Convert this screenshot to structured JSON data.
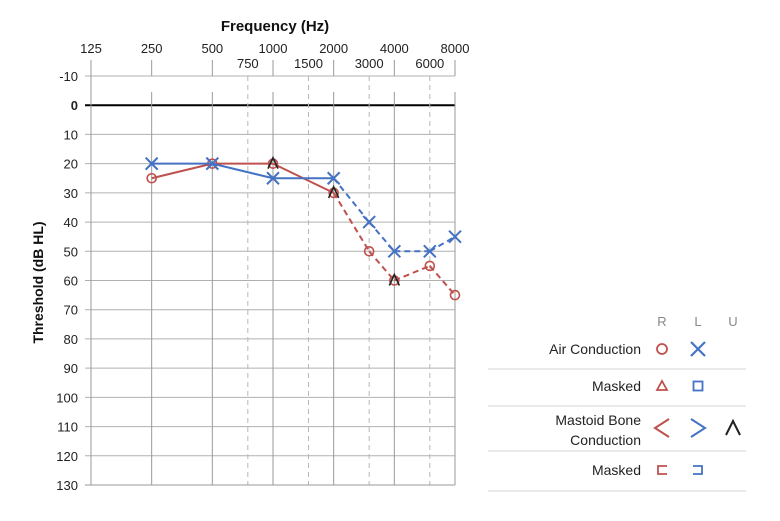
{
  "chart_data": {
    "type": "line",
    "title": "Frequency (Hz)",
    "xlabel": "Frequency (Hz)",
    "ylabel": "Threshold (dB HL)",
    "x_scale": "log2",
    "x_major_ticks": [
      125,
      250,
      500,
      1000,
      2000,
      4000,
      8000
    ],
    "x_major_labels": [
      "125",
      "250",
      "500",
      "1000",
      "2000",
      "4000",
      "8000"
    ],
    "x_minor_ticks": [
      750,
      1500,
      3000,
      6000
    ],
    "x_minor_labels": [
      "750",
      "1500",
      "3000",
      "6000"
    ],
    "ylim": [
      -10,
      130
    ],
    "y_inverted": true,
    "y_ticks": [
      -10,
      0,
      10,
      20,
      30,
      40,
      50,
      60,
      70,
      80,
      90,
      100,
      110,
      120,
      130
    ],
    "y_tick_labels": [
      "-10",
      "0",
      "10",
      "20",
      "30",
      "40",
      "50",
      "60",
      "70",
      "80",
      "90",
      "100",
      "110",
      "120",
      "130"
    ],
    "grid": true,
    "reference_line": 0,
    "series": [
      {
        "ear": "right",
        "measure": "air conduction",
        "color": "#c0504d",
        "marker": "circle",
        "points": [
          {
            "x": 250,
            "y": 25
          },
          {
            "x": 500,
            "y": 20
          },
          {
            "x": 1000,
            "y": 20
          },
          {
            "x": 2000,
            "y": 30
          },
          {
            "x": 3000,
            "y": 50
          },
          {
            "x": 4000,
            "y": 60
          },
          {
            "x": 6000,
            "y": 55
          },
          {
            "x": 8000,
            "y": 65
          }
        ]
      },
      {
        "ear": "left",
        "measure": "air conduction",
        "color": "#4472c4",
        "marker": "cross",
        "points": [
          {
            "x": 250,
            "y": 20
          },
          {
            "x": 500,
            "y": 20
          },
          {
            "x": 1000,
            "y": 25
          },
          {
            "x": 2000,
            "y": 25
          },
          {
            "x": 3000,
            "y": 40
          },
          {
            "x": 4000,
            "y": 50
          },
          {
            "x": 6000,
            "y": 50
          },
          {
            "x": 8000,
            "y": 45
          }
        ]
      },
      {
        "ear": "unmasked bone",
        "measure": "mastoid bone conduction",
        "color": "#222222",
        "marker": "caret",
        "points": [
          {
            "x": 1000,
            "y": 20
          },
          {
            "x": 2000,
            "y": 30
          },
          {
            "x": 4000,
            "y": 60
          }
        ]
      }
    ]
  },
  "legend": {
    "headers": [
      "R",
      "L",
      "U"
    ],
    "rows": [
      {
        "label": "Air Conduction",
        "label_line2": "",
        "symbols": [
          "circle",
          "cross",
          ""
        ]
      },
      {
        "label": "Masked",
        "label_line2": "",
        "symbols": [
          "triangle",
          "square",
          ""
        ]
      },
      {
        "label": "Mastoid Bone",
        "label_line2": "Conduction",
        "symbols": [
          "less-than",
          "greater-than",
          "caret"
        ]
      },
      {
        "label": "Masked",
        "label_line2": "",
        "symbols": [
          "bracket-left",
          "bracket-right",
          ""
        ]
      }
    ],
    "colors": {
      "right": "#c0504d",
      "left": "#4472c4",
      "unmasked": "#222222"
    }
  }
}
